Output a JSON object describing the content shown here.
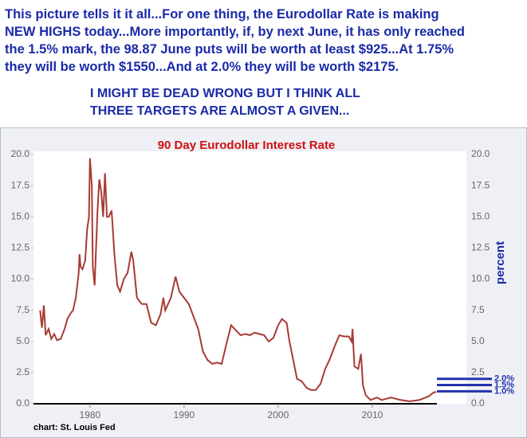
{
  "header": {
    "lines": [
      "This picture tells it it all...For one thing, the Eurodollar Rate is making",
      "NEW HIGHS today...More importantly, if, by next June, it has only reached",
      "the 1.5% mark, the 98.87 June puts will be worth at least $925...At 1.75%",
      "they will be worth $1550...And at 2.0% they will be worth $2175."
    ],
    "emphasis": [
      "I MIGHT BE DEAD WRONG BUT I THINK ALL",
      "THREE TARGETS ARE ALMOST A GIVEN..."
    ]
  },
  "chart_data": {
    "type": "line",
    "title": "90 Day Eurodollar Interest Rate",
    "y_label": "percent",
    "source": "chart: St. Louis Fed",
    "color": "#a83a32",
    "xlim": [
      1974,
      2020
    ],
    "xticks": [
      1980,
      1990,
      2000,
      2010
    ],
    "ylim": [
      0,
      20
    ],
    "yticks": [
      {
        "value": 0,
        "label": "0.0"
      },
      {
        "value": 2.5,
        "label": "2.5"
      },
      {
        "value": 5,
        "label": "5.0"
      },
      {
        "value": 7.5,
        "label": "7.5"
      },
      {
        "value": 10,
        "label": "10.0"
      },
      {
        "value": 12.5,
        "label": "12.5"
      },
      {
        "value": 15,
        "label": "15.0"
      },
      {
        "value": 17.5,
        "label": "17.5"
      },
      {
        "value": 20,
        "label": "20.0"
      }
    ],
    "x": [
      1974.7,
      1974.9,
      1975.1,
      1975.3,
      1975.6,
      1975.9,
      1976.2,
      1976.5,
      1976.9,
      1977.3,
      1977.6,
      1977.9,
      1978.2,
      1978.5,
      1978.8,
      1978.9,
      1979.0,
      1979.2,
      1979.5,
      1979.7,
      1979.9,
      1980.0,
      1980.2,
      1980.3,
      1980.5,
      1980.8,
      1981.0,
      1981.2,
      1981.4,
      1981.6,
      1981.8,
      1982.0,
      1982.3,
      1982.6,
      1982.9,
      1983.2,
      1983.6,
      1984.0,
      1984.4,
      1984.6,
      1985.0,
      1985.5,
      1986.0,
      1986.5,
      1987.0,
      1987.5,
      1987.8,
      1988.0,
      1988.6,
      1989.1,
      1989.5,
      1990.0,
      1990.5,
      1991.0,
      1991.5,
      1992.0,
      1992.5,
      1993.0,
      1993.5,
      1994.0,
      1994.5,
      1995.0,
      1995.5,
      1996.0,
      1996.5,
      1997.0,
      1997.5,
      1998.0,
      1998.5,
      1999.0,
      1999.5,
      2000.0,
      2000.4,
      2000.9,
      2001.2,
      2001.6,
      2002.0,
      2002.5,
      2003.0,
      2003.5,
      2004.0,
      2004.5,
      2005.0,
      2005.5,
      2006.0,
      2006.5,
      2007.0,
      2007.5,
      2007.8,
      2007.9,
      2008.1,
      2008.5,
      2008.8,
      2009.0,
      2009.3,
      2009.8,
      2010.5,
      2011.0,
      2011.5,
      2012.0,
      2013.0,
      2014.0,
      2015.0,
      2016.0,
      2016.5,
      2016.8
    ],
    "values": [
      7.5,
      6.1,
      7.9,
      5.5,
      6.0,
      5.2,
      5.6,
      5.1,
      5.2,
      6.0,
      6.8,
      7.2,
      7.5,
      8.5,
      10.5,
      12.0,
      11.0,
      10.8,
      11.5,
      14.0,
      15.0,
      19.7,
      17.5,
      11.0,
      9.5,
      15.5,
      18.0,
      17.0,
      15.0,
      18.5,
      15.0,
      15.0,
      15.5,
      12.0,
      9.5,
      9.0,
      10.0,
      10.5,
      12.2,
      11.5,
      8.5,
      8.0,
      8.0,
      6.5,
      6.3,
      7.2,
      8.5,
      7.5,
      8.5,
      10.2,
      9.0,
      8.5,
      8.0,
      7.0,
      6.0,
      4.2,
      3.5,
      3.2,
      3.3,
      3.2,
      4.8,
      6.3,
      5.9,
      5.5,
      5.6,
      5.5,
      5.7,
      5.6,
      5.5,
      5.0,
      5.3,
      6.3,
      6.8,
      6.5,
      5.0,
      3.5,
      2.0,
      1.8,
      1.3,
      1.1,
      1.1,
      1.6,
      2.8,
      3.6,
      4.6,
      5.5,
      5.4,
      5.4,
      5.0,
      6.0,
      3.0,
      2.8,
      4.0,
      1.5,
      0.7,
      0.3,
      0.5,
      0.3,
      0.4,
      0.5,
      0.3,
      0.2,
      0.3,
      0.6,
      0.9,
      0.95
    ],
    "targets": [
      {
        "value": 2.0,
        "label": "2.0%"
      },
      {
        "value": 1.5,
        "label": "1.5%"
      },
      {
        "value": 1.0,
        "label": "1.0%"
      }
    ],
    "target_color": "#2233aa"
  }
}
